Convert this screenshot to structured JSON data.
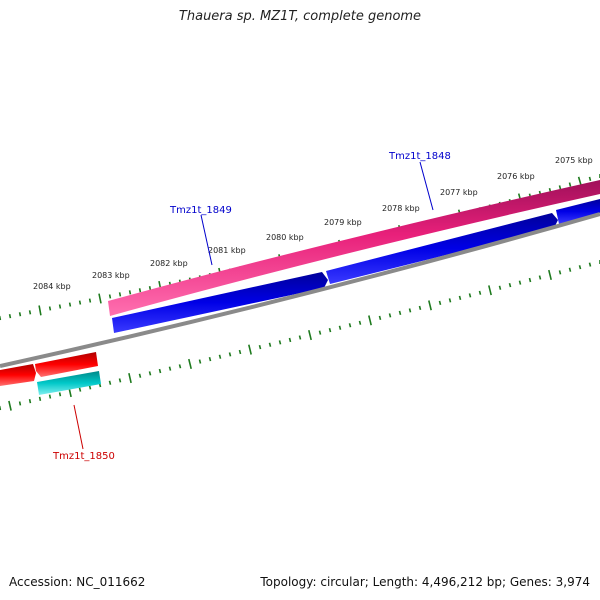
{
  "title": "Thauera sp. MZ1T, complete genome",
  "footer": {
    "accession": "Accession: NC_011662",
    "summary": "Topology: circular; Length: 4,496,212 bp; Genes: 3,974"
  },
  "ticks": [
    {
      "label": "2075 kbp"
    },
    {
      "label": "2076 kbp"
    },
    {
      "label": "2077 kbp"
    },
    {
      "label": "2078 kbp"
    },
    {
      "label": "2079 kbp"
    },
    {
      "label": "2080 kbp"
    },
    {
      "label": "2081 kbp"
    },
    {
      "label": "2082 kbp"
    },
    {
      "label": "2083 kbp"
    },
    {
      "label": "2084 kbp"
    }
  ],
  "genes": [
    {
      "label": "Tmz1t_1848",
      "color": "#0000cc"
    },
    {
      "label": "Tmz1t_1849",
      "color": "#0000cc"
    },
    {
      "label": "Tmz1t_1850",
      "color": "#cc0000"
    }
  ],
  "colors": {
    "tick_green": "#1e7a1e",
    "backbone_gray": "#808080",
    "magenta": "#e8207a",
    "blue": "#0000e6",
    "red": "#ee0000",
    "cyan": "#00c8c8"
  }
}
